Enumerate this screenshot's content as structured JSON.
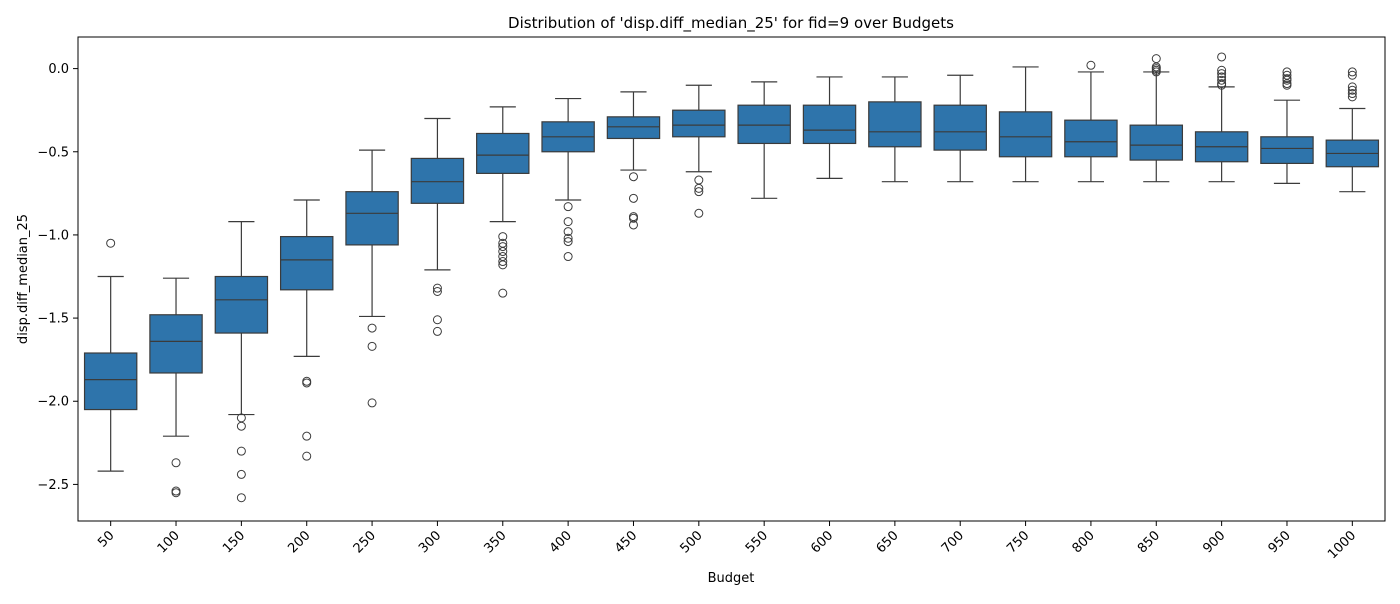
{
  "chart_data": {
    "type": "box",
    "title": "Distribution of 'disp.diff_median_25' for fid=9 over Budgets",
    "xlabel": "Budget",
    "ylabel": "disp.diff_median_25",
    "ylim": [
      -2.72,
      0.19
    ],
    "yticks": [
      0.0,
      -0.5,
      -1.0,
      -1.5,
      -2.0,
      -2.5
    ],
    "ytick_labels": [
      "0.0",
      "−0.5",
      "−1.0",
      "−1.5",
      "−2.0",
      "−2.5"
    ],
    "grid": false,
    "box_color": "#2e74ab",
    "categories": [
      "50",
      "100",
      "150",
      "200",
      "250",
      "300",
      "350",
      "400",
      "450",
      "500",
      "550",
      "600",
      "650",
      "700",
      "750",
      "800",
      "850",
      "900",
      "950",
      "1000"
    ],
    "boxes": [
      {
        "q1": -2.05,
        "median": -1.87,
        "q3": -1.71,
        "whisker_low": -2.42,
        "whisker_high": -1.25,
        "outliers": [
          -1.05
        ]
      },
      {
        "q1": -1.83,
        "median": -1.64,
        "q3": -1.48,
        "whisker_low": -2.21,
        "whisker_high": -1.26,
        "outliers": [
          -2.37,
          -2.54,
          -2.55
        ]
      },
      {
        "q1": -1.59,
        "median": -1.39,
        "q3": -1.25,
        "whisker_low": -2.08,
        "whisker_high": -0.92,
        "outliers": [
          -2.1,
          -2.15,
          -2.3,
          -2.44,
          -2.58
        ]
      },
      {
        "q1": -1.33,
        "median": -1.15,
        "q3": -1.01,
        "whisker_low": -1.73,
        "whisker_high": -0.79,
        "outliers": [
          -1.88,
          -1.89,
          -2.21,
          -2.33
        ]
      },
      {
        "q1": -1.06,
        "median": -0.87,
        "q3": -0.74,
        "whisker_low": -1.49,
        "whisker_high": -0.49,
        "outliers": [
          -1.56,
          -1.67,
          -2.01
        ]
      },
      {
        "q1": -0.81,
        "median": -0.68,
        "q3": -0.54,
        "whisker_low": -1.21,
        "whisker_high": -0.3,
        "outliers": [
          -1.32,
          -1.34,
          -1.51,
          -1.58
        ]
      },
      {
        "q1": -0.63,
        "median": -0.52,
        "q3": -0.39,
        "whisker_low": -0.92,
        "whisker_high": -0.23,
        "outliers": [
          -1.01,
          -1.05,
          -1.07,
          -1.1,
          -1.13,
          -1.16,
          -1.18,
          -1.35
        ]
      },
      {
        "q1": -0.5,
        "median": -0.41,
        "q3": -0.32,
        "whisker_low": -0.79,
        "whisker_high": -0.18,
        "outliers": [
          -0.83,
          -0.92,
          -0.98,
          -1.02,
          -1.04,
          -1.13
        ]
      },
      {
        "q1": -0.42,
        "median": -0.35,
        "q3": -0.29,
        "whisker_low": -0.61,
        "whisker_high": -0.14,
        "outliers": [
          -0.65,
          -0.78,
          -0.89,
          -0.9,
          -0.94
        ]
      },
      {
        "q1": -0.41,
        "median": -0.34,
        "q3": -0.25,
        "whisker_low": -0.62,
        "whisker_high": -0.1,
        "outliers": [
          -0.67,
          -0.72,
          -0.74,
          -0.87
        ]
      },
      {
        "q1": -0.45,
        "median": -0.34,
        "q3": -0.22,
        "whisker_low": -0.78,
        "whisker_high": -0.08,
        "outliers": []
      },
      {
        "q1": -0.45,
        "median": -0.37,
        "q3": -0.22,
        "whisker_low": -0.66,
        "whisker_high": -0.05,
        "outliers": []
      },
      {
        "q1": -0.47,
        "median": -0.38,
        "q3": -0.2,
        "whisker_low": -0.68,
        "whisker_high": -0.05,
        "outliers": []
      },
      {
        "q1": -0.49,
        "median": -0.38,
        "q3": -0.22,
        "whisker_low": -0.68,
        "whisker_high": -0.04,
        "outliers": []
      },
      {
        "q1": -0.53,
        "median": -0.41,
        "q3": -0.26,
        "whisker_low": -0.68,
        "whisker_high": 0.01,
        "outliers": []
      },
      {
        "q1": -0.53,
        "median": -0.44,
        "q3": -0.31,
        "whisker_low": -0.68,
        "whisker_high": -0.02,
        "outliers": [
          0.02
        ]
      },
      {
        "q1": -0.55,
        "median": -0.46,
        "q3": -0.34,
        "whisker_low": -0.68,
        "whisker_high": -0.02,
        "outliers": [
          -0.01,
          -0.02,
          0.0,
          0.01,
          0.06
        ]
      },
      {
        "q1": -0.56,
        "median": -0.47,
        "q3": -0.38,
        "whisker_low": -0.68,
        "whisker_high": -0.11,
        "outliers": [
          -0.1,
          -0.09,
          -0.07,
          -0.05,
          -0.03,
          -0.01,
          0.07
        ]
      },
      {
        "q1": -0.57,
        "median": -0.48,
        "q3": -0.41,
        "whisker_low": -0.69,
        "whisker_high": -0.19,
        "outliers": [
          -0.1,
          -0.09,
          -0.07,
          -0.06,
          -0.04,
          -0.02
        ]
      },
      {
        "q1": -0.59,
        "median": -0.51,
        "q3": -0.43,
        "whisker_low": -0.74,
        "whisker_high": -0.24,
        "outliers": [
          -0.17,
          -0.15,
          -0.13,
          -0.11,
          -0.04,
          -0.02
        ]
      }
    ]
  }
}
